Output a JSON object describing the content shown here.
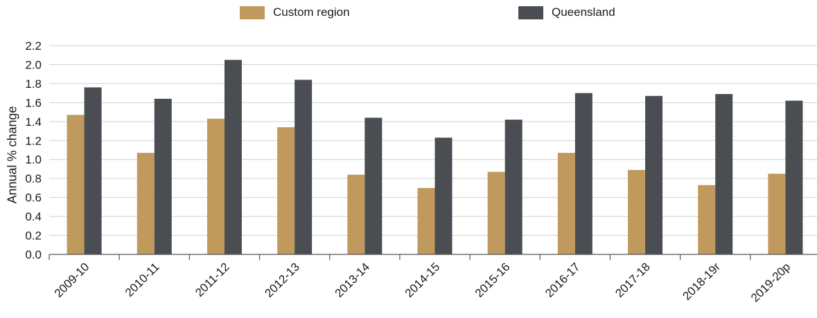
{
  "chart_data": {
    "type": "bar",
    "title": "",
    "xlabel": "",
    "ylabel": "Annual % change",
    "ylim": [
      0,
      2.2
    ],
    "yticks": [
      "0.0",
      "0.2",
      "0.4",
      "0.6",
      "0.8",
      "1.0",
      "1.2",
      "1.4",
      "1.6",
      "1.8",
      "2.0",
      "2.2"
    ],
    "grid": true,
    "legend_position": "top",
    "categories": [
      "2009-10",
      "2010-11",
      "2011-12",
      "2012-13",
      "2013-14",
      "2014-15",
      "2015-16",
      "2016-17",
      "2017-18",
      "2018-19r",
      "2019-20p"
    ],
    "series": [
      {
        "name": "Custom region",
        "color": "#c0995d",
        "values": [
          1.47,
          1.07,
          1.43,
          1.34,
          0.84,
          0.7,
          0.87,
          1.07,
          0.89,
          0.73,
          0.85
        ]
      },
      {
        "name": "Queensland",
        "color": "#4a4d52",
        "values": [
          1.76,
          1.64,
          2.05,
          1.84,
          1.44,
          1.23,
          1.42,
          1.7,
          1.67,
          1.69,
          1.62
        ]
      }
    ]
  }
}
